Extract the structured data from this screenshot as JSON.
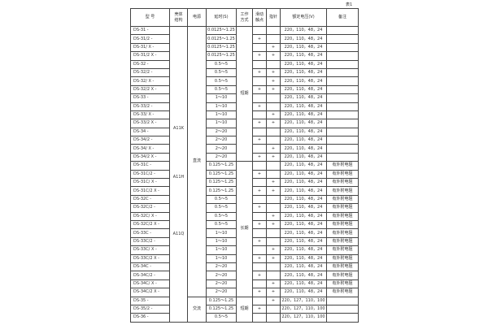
{
  "caption": "表1",
  "headers": {
    "model": "型  号",
    "shell": "壳体\n结构",
    "power": "电源",
    "delay": "延时(S)",
    "mode": "工作\n方式",
    "slide": "滑动\n触点",
    "pointer": "指针",
    "voltage": "额定电压(V)",
    "note": "备注"
  },
  "shell_labels": [
    "A11K",
    "A11H",
    "A11Q"
  ],
  "power_groups": [
    {
      "label": "直流",
      "rows": 32
    },
    {
      "label": "交流",
      "rows": 3
    }
  ],
  "mode_groups": [
    {
      "label": "短期",
      "rows": 16
    },
    {
      "label": "长期",
      "rows": 16
    },
    {
      "label": "短期",
      "rows": 3
    }
  ],
  "rows": [
    {
      "model": "DS-31 -",
      "delay": "0.0125～1.25",
      "slide": "",
      "pointer": "",
      "voltage": "220，110，48，24",
      "note": ""
    },
    {
      "model": "DS-31/2 -",
      "delay": "0.0125～1.25",
      "slide": "+",
      "pointer": "",
      "voltage": "220，110，48，24",
      "note": ""
    },
    {
      "model": "DS-31/ X -",
      "delay": "0.0125～1.25",
      "slide": "",
      "pointer": "+",
      "voltage": "220，110，48，24",
      "note": ""
    },
    {
      "model": "DS-31/2 X -",
      "delay": "0.0125～1.25",
      "slide": "+",
      "pointer": "+",
      "voltage": "220，110，48，24",
      "note": ""
    },
    {
      "model": "DS-32 -",
      "delay": "0.5～5",
      "slide": "",
      "pointer": "",
      "voltage": "220，110，48，24",
      "note": ""
    },
    {
      "model": "DS-32/2 -",
      "delay": "0.5～5",
      "slide": "+",
      "pointer": "+",
      "voltage": "220，110，48，24",
      "note": ""
    },
    {
      "model": "DS-32/ X -",
      "delay": "0.5～5",
      "slide": "",
      "pointer": "+",
      "voltage": "220，110，48，24",
      "note": ""
    },
    {
      "model": "DS-32/2 X -",
      "delay": "0.5～5",
      "slide": "+",
      "pointer": "+",
      "voltage": "220，110，48，24",
      "note": ""
    },
    {
      "model": "DS-33 -",
      "delay": "1～10",
      "slide": "",
      "pointer": "",
      "voltage": "220，110，48，24",
      "note": ""
    },
    {
      "model": "DS-33/2 -",
      "delay": "1～10",
      "slide": "+",
      "pointer": "",
      "voltage": "220，110，48，24",
      "note": ""
    },
    {
      "model": "DS-33/ X -",
      "delay": "1～10",
      "slide": "",
      "pointer": "+",
      "voltage": "220，110，48，24",
      "note": ""
    },
    {
      "model": "DS-33/2 X -",
      "delay": "1～10",
      "slide": "+",
      "pointer": "+",
      "voltage": "220，110，48，24",
      "note": ""
    },
    {
      "model": "DS-34 -",
      "delay": "2～20",
      "slide": "",
      "pointer": "",
      "voltage": "220，110，48，24",
      "note": ""
    },
    {
      "model": "DS-34/2 -",
      "delay": "2～20",
      "slide": "+",
      "pointer": "",
      "voltage": "220，110，48，24",
      "note": ""
    },
    {
      "model": "DS-34/ X -",
      "delay": "2～20",
      "slide": "",
      "pointer": "+",
      "voltage": "220，110，48，24",
      "note": ""
    },
    {
      "model": "DS-34/2 X -",
      "delay": "2～20",
      "slide": "+",
      "pointer": "+",
      "voltage": "220，110，48，24",
      "note": ""
    },
    {
      "model": "DS-31C -",
      "delay": "0.125～1.25",
      "slide": "",
      "pointer": "",
      "voltage": "220，110，48，24",
      "note": "有外附电阻"
    },
    {
      "model": "DS-31C/2 -",
      "delay": "0.125～1.25",
      "slide": "+",
      "pointer": "",
      "voltage": "220，110，48，24",
      "note": "有外附电阻"
    },
    {
      "model": "DS-31C/ X -",
      "delay": "0.125～1.25",
      "slide": "",
      "pointer": "+",
      "voltage": "220，110，48，24",
      "note": "有外附电阻"
    },
    {
      "model": "DS-31C/2 X -",
      "delay": "0.125～1.25",
      "slide": "+",
      "pointer": "+",
      "voltage": "220，110，48，24",
      "note": "有外附电阻"
    },
    {
      "model": "DS-32C -",
      "delay": "0.5～5",
      "slide": "",
      "pointer": "",
      "voltage": "220，110，48，24",
      "note": "有外附电阻"
    },
    {
      "model": "DS-32C/2 -",
      "delay": "0.5～5",
      "slide": "+",
      "pointer": "",
      "voltage": "220，110，48，24",
      "note": "有外附电阻"
    },
    {
      "model": "DS-32C/ X -",
      "delay": "0.5～5",
      "slide": "",
      "pointer": "+",
      "voltage": "220，110，48，24",
      "note": "有外附电阻"
    },
    {
      "model": "DS-32C/2 X -",
      "delay": "0.5～5",
      "slide": "+",
      "pointer": "+",
      "voltage": "220，110，48，24",
      "note": "有外附电阻"
    },
    {
      "model": "DS-33C -",
      "delay": "1～10",
      "slide": "",
      "pointer": "",
      "voltage": "220，110，48，24",
      "note": "有外附电阻"
    },
    {
      "model": "DS-33C/2 -",
      "delay": "1～10",
      "slide": "+",
      "pointer": "",
      "voltage": "220，110，48，24",
      "note": "有外附电阻"
    },
    {
      "model": "DS-33C/ X -",
      "delay": "1～10",
      "slide": "",
      "pointer": "+",
      "voltage": "220，110，48，24",
      "note": "有外附电阻"
    },
    {
      "model": "DS-33C/2 X -",
      "delay": "1～10",
      "slide": "+",
      "pointer": "+",
      "voltage": "220，110，48，24",
      "note": "有外附电阻"
    },
    {
      "model": "DS-34C -",
      "delay": "2～20",
      "slide": "",
      "pointer": "",
      "voltage": "220，110，48，24",
      "note": "有外附电阻"
    },
    {
      "model": "DS-34C/2 -",
      "delay": "2～20",
      "slide": "+",
      "pointer": "",
      "voltage": "220，110，48，24",
      "note": "有外附电阻"
    },
    {
      "model": "DS-34C/ X -",
      "delay": "2～20",
      "slide": "",
      "pointer": "+",
      "voltage": "220，110，48，24",
      "note": "有外附电阻"
    },
    {
      "model": "DS-34C/2 X -",
      "delay": "2～20",
      "slide": "+",
      "pointer": "+",
      "voltage": "220，110，48，24",
      "note": "有外附电阻"
    },
    {
      "model": "DS-35 -",
      "delay": "0.125～1.25",
      "slide": "",
      "pointer": "+",
      "voltage": "220，127，110，100",
      "note": ""
    },
    {
      "model": "DS-35/2  -",
      "delay": "0.125～1.25",
      "slide": "+",
      "pointer": "",
      "voltage": "220，127，110，100",
      "note": ""
    },
    {
      "model": "DS-36 -",
      "delay": "0.5～5",
      "slide": "",
      "pointer": "",
      "voltage": "220，127，110，100",
      "note": ""
    }
  ]
}
